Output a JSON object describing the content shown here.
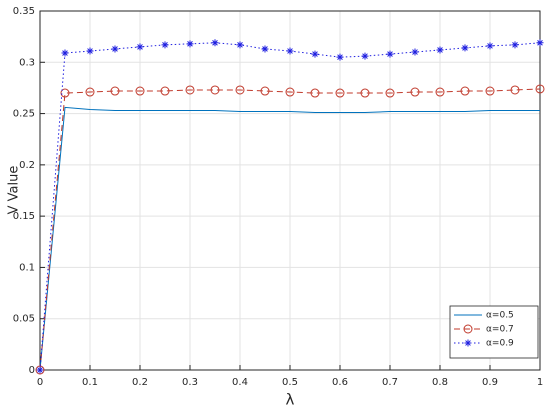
{
  "chart_data": {
    "type": "line",
    "xlabel": "λ",
    "ylabel": "V Value",
    "x": [
      0,
      0.05,
      0.1,
      0.15,
      0.2,
      0.25,
      0.3,
      0.35,
      0.4,
      0.45,
      0.5,
      0.55,
      0.6,
      0.65,
      0.7,
      0.75,
      0.8,
      0.85,
      0.9,
      0.95,
      1
    ],
    "series": [
      {
        "name": "α=0.5",
        "color": "#0072bd",
        "linestyle": "solid",
        "marker": "none",
        "values": [
          0,
          0.256,
          0.254,
          0.253,
          0.253,
          0.253,
          0.253,
          0.253,
          0.252,
          0.252,
          0.252,
          0.251,
          0.251,
          0.251,
          0.252,
          0.252,
          0.252,
          0.252,
          0.253,
          0.253,
          0.253
        ]
      },
      {
        "name": "α=0.7",
        "color": "#c0392b",
        "linestyle": "dashed",
        "marker": "circle",
        "values": [
          0,
          0.27,
          0.271,
          0.272,
          0.272,
          0.272,
          0.273,
          0.273,
          0.273,
          0.272,
          0.271,
          0.27,
          0.27,
          0.27,
          0.27,
          0.271,
          0.271,
          0.272,
          0.272,
          0.273,
          0.274
        ]
      },
      {
        "name": "α=0.9",
        "color": "#1f1fe0",
        "linestyle": "dotted",
        "marker": "star",
        "values": [
          0,
          0.309,
          0.311,
          0.313,
          0.315,
          0.317,
          0.318,
          0.319,
          0.317,
          0.313,
          0.311,
          0.308,
          0.305,
          0.306,
          0.308,
          0.31,
          0.312,
          0.314,
          0.316,
          0.317,
          0.319
        ]
      }
    ],
    "xlim": [
      0,
      1
    ],
    "xticks": [
      0,
      0.1,
      0.2,
      0.3,
      0.4,
      0.5,
      0.6,
      0.7,
      0.8,
      0.9,
      1
    ],
    "ylim": [
      0,
      0.35
    ],
    "yticks": [
      0,
      0.05,
      0.1,
      0.15,
      0.2,
      0.25,
      0.3,
      0.35
    ],
    "grid": true,
    "legend": "bottom-right"
  }
}
